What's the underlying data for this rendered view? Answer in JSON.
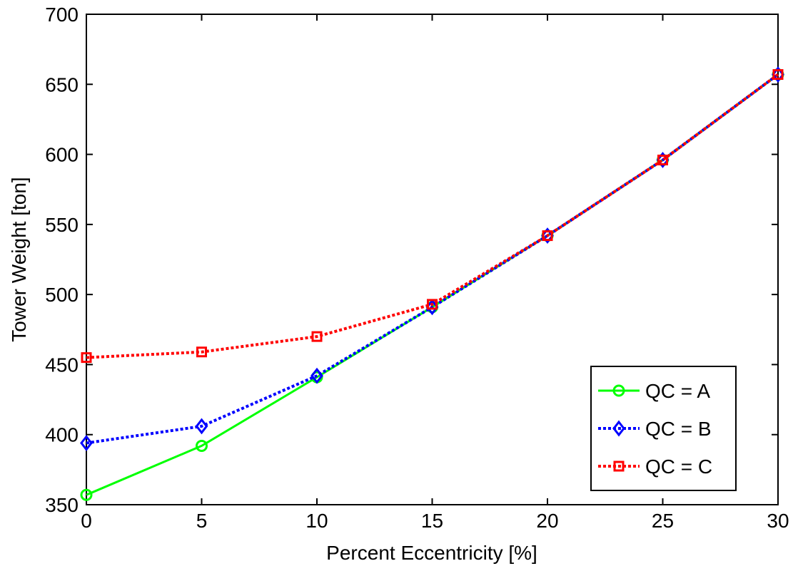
{
  "chart_data": {
    "type": "line",
    "title": "",
    "xlabel": "Percent Eccentricity [%]",
    "ylabel": "Tower Weight [ton]",
    "xlim": [
      0,
      30
    ],
    "ylim": [
      350,
      700
    ],
    "xticks": [
      0,
      5,
      10,
      15,
      20,
      25,
      30
    ],
    "yticks": [
      350,
      400,
      450,
      500,
      550,
      600,
      650,
      700
    ],
    "grid": false,
    "legend_position": "bottom-right",
    "x": [
      0,
      5,
      10,
      15,
      20,
      25,
      30
    ],
    "series": [
      {
        "name": "QC = A",
        "values": [
          357,
          392,
          441,
          491,
          542,
          596,
          657
        ],
        "color": "#00ff00",
        "line": "solid",
        "marker": "circle"
      },
      {
        "name": "QC = B",
        "values": [
          394,
          406,
          442,
          491,
          542,
          596,
          657
        ],
        "color": "#0000ff",
        "line": "dotted",
        "marker": "diamond"
      },
      {
        "name": "QC = C",
        "values": [
          455,
          459,
          470,
          493,
          542,
          596,
          657
        ],
        "color": "#ff0000",
        "line": "dotted",
        "marker": "square"
      }
    ]
  }
}
